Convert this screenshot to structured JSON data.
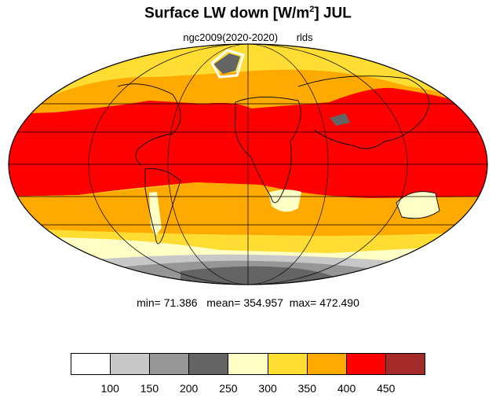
{
  "header": {
    "title_main": "Surface LW down [W/m",
    "title_sup": "2",
    "title_end": "]  JUL",
    "subtitle_left": "ngc2009(2020-2020)",
    "subtitle_right": "rlds"
  },
  "stats": {
    "min_label": "min=",
    "min_value": "71.386",
    "mean_label": "mean=",
    "mean_value": "354.957",
    "max_label": "max=",
    "max_value": "472.490"
  },
  "legend": {
    "ticks": [
      "100",
      "150",
      "200",
      "250",
      "300",
      "350",
      "400",
      "450"
    ],
    "colors": [
      "#ffffff",
      "#c8c8c8",
      "#969696",
      "#646464",
      "#ffffc6",
      "#ffdd33",
      "#ffaa00",
      "#ff0000",
      "#a52a2a"
    ]
  },
  "map_colors": {
    "ocean_band_red": "#ff0000",
    "orange": "#ffaa00",
    "yellow": "#ffdd33",
    "pale_yellow": "#ffffc6",
    "gray_light": "#c8c8c8",
    "gray_mid": "#969696",
    "gray_dark": "#646464",
    "white": "#ffffff"
  }
}
